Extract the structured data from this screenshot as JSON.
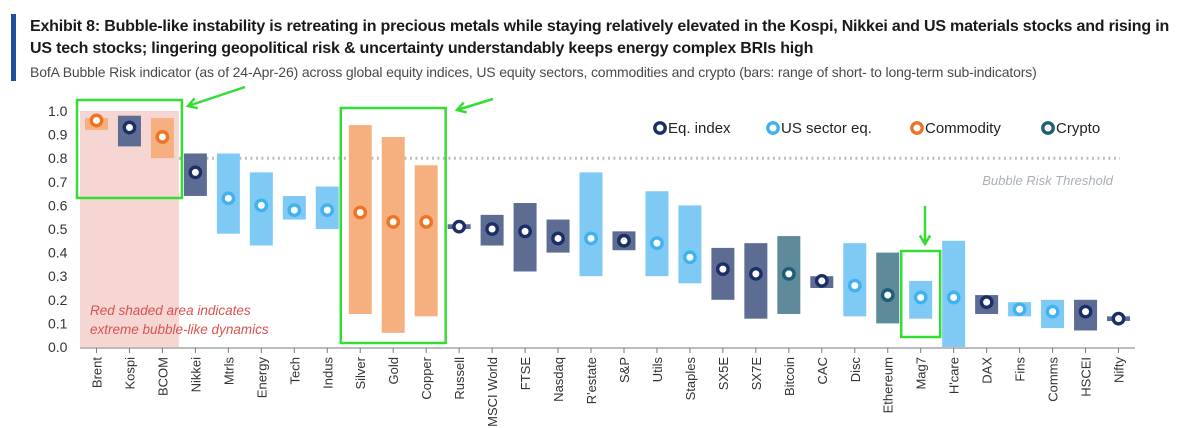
{
  "header": {
    "title": "Exhibit 8: Bubble-like instability is retreating in precious metals while staying relatively elevated in the Kospi, Nikkei and US materials stocks and rising in US tech stocks; lingering geopolitical risk & uncertainty understandably keeps energy complex BRIs high",
    "subtitle": "BofA Bubble Risk indicator (as of 24-Apr-26) across global equity indices, US equity sectors, commodities and crypto (bars: range of short- to long-term sub-indicators)"
  },
  "colors": {
    "accent": "#1f4e9c",
    "eq_index": "#1b2f66",
    "us_sector": "#41b2ee",
    "commodity": "#ec7424",
    "crypto": "#1d5e76",
    "eq_index_bar": "#5d6c93",
    "us_sector_bar": "#7fcaf5",
    "commodity_bar": "#f6b07f",
    "crypto_bar": "#5f8a99",
    "red_shade": "#f6d6d3",
    "highlight": "#33dd33",
    "threshold": "#bdbdbd"
  },
  "chart_data": {
    "type": "range-bar-with-markers",
    "title": "",
    "ylim": [
      0.0,
      1.0
    ],
    "yticks": [
      0.0,
      0.1,
      0.2,
      0.3,
      0.4,
      0.5,
      0.6,
      0.7,
      0.8,
      0.9,
      1.0
    ],
    "ytick_labels": [
      "0.0",
      "0.1",
      "0.2",
      "0.3",
      "0.4",
      "0.5",
      "0.6",
      "0.7",
      "0.8",
      "0.9",
      "1.0"
    ],
    "threshold": {
      "value": 0.8,
      "label": "Bubble Risk Threshold"
    },
    "red_zone": {
      "from_category": "Brent",
      "to_category": "BCOM",
      "label_lines": [
        "Red shaded area indicates",
        "extreme bubble-like dynamics"
      ]
    },
    "legend_position": "top-right",
    "legend": [
      {
        "key": "eq_index",
        "label": "Eq. index"
      },
      {
        "key": "us_sector",
        "label": "US sector eq."
      },
      {
        "key": "commodity",
        "label": "Commodity"
      },
      {
        "key": "crypto",
        "label": "Crypto"
      }
    ],
    "highlight_boxes": [
      {
        "from": "Brent",
        "to": "BCOM",
        "arrow": true
      },
      {
        "from": "Silver",
        "to": "Copper",
        "arrow": true
      },
      {
        "from": "Mag7",
        "to": "Mag7",
        "arrow": true
      }
    ],
    "items": [
      {
        "label": "Brent",
        "group": "commodity",
        "low": 0.92,
        "high": 0.97,
        "value": 0.96
      },
      {
        "label": "Kospi",
        "group": "eq_index",
        "low": 0.85,
        "high": 0.98,
        "value": 0.93
      },
      {
        "label": "BCOM",
        "group": "commodity",
        "low": 0.8,
        "high": 0.97,
        "value": 0.89
      },
      {
        "label": "Nikkei",
        "group": "eq_index",
        "low": 0.64,
        "high": 0.82,
        "value": 0.74
      },
      {
        "label": "Mtrls",
        "group": "us_sector",
        "low": 0.48,
        "high": 0.82,
        "value": 0.63
      },
      {
        "label": "Energy",
        "group": "us_sector",
        "low": 0.43,
        "high": 0.74,
        "value": 0.6
      },
      {
        "label": "Tech",
        "group": "us_sector",
        "low": 0.54,
        "high": 0.64,
        "value": 0.58
      },
      {
        "label": "Indus",
        "group": "us_sector",
        "low": 0.5,
        "high": 0.68,
        "value": 0.58
      },
      {
        "label": "Silver",
        "group": "commodity",
        "low": 0.14,
        "high": 0.94,
        "value": 0.57
      },
      {
        "label": "Gold",
        "group": "commodity",
        "low": 0.06,
        "high": 0.89,
        "value": 0.53
      },
      {
        "label": "Copper",
        "group": "commodity",
        "low": 0.13,
        "high": 0.77,
        "value": 0.53
      },
      {
        "label": "Russell",
        "group": "eq_index",
        "low": 0.5,
        "high": 0.52,
        "value": 0.51
      },
      {
        "label": "MSCI World",
        "group": "eq_index",
        "low": 0.43,
        "high": 0.56,
        "value": 0.5
      },
      {
        "label": "FTSE",
        "group": "eq_index",
        "low": 0.32,
        "high": 0.61,
        "value": 0.49
      },
      {
        "label": "Nasdaq",
        "group": "eq_index",
        "low": 0.4,
        "high": 0.54,
        "value": 0.46
      },
      {
        "label": "R'estate",
        "group": "us_sector",
        "low": 0.3,
        "high": 0.74,
        "value": 0.46
      },
      {
        "label": "S&P",
        "group": "eq_index",
        "low": 0.41,
        "high": 0.49,
        "value": 0.45
      },
      {
        "label": "Utils",
        "group": "us_sector",
        "low": 0.3,
        "high": 0.66,
        "value": 0.44
      },
      {
        "label": "Staples",
        "group": "us_sector",
        "low": 0.27,
        "high": 0.6,
        "value": 0.38
      },
      {
        "label": "SX5E",
        "group": "eq_index",
        "low": 0.2,
        "high": 0.42,
        "value": 0.33
      },
      {
        "label": "SX7E",
        "group": "eq_index",
        "low": 0.12,
        "high": 0.44,
        "value": 0.31
      },
      {
        "label": "Bitcoin",
        "group": "crypto",
        "low": 0.14,
        "high": 0.47,
        "value": 0.31
      },
      {
        "label": "CAC",
        "group": "eq_index",
        "low": 0.25,
        "high": 0.3,
        "value": 0.28
      },
      {
        "label": "Disc",
        "group": "us_sector",
        "low": 0.13,
        "high": 0.44,
        "value": 0.26
      },
      {
        "label": "Ethereum",
        "group": "crypto",
        "low": 0.1,
        "high": 0.4,
        "value": 0.22
      },
      {
        "label": "Mag7",
        "group": "us_sector",
        "low": 0.12,
        "high": 0.28,
        "value": 0.21
      },
      {
        "label": "H'care",
        "group": "us_sector",
        "low": 0.0,
        "high": 0.45,
        "value": 0.21
      },
      {
        "label": "DAX",
        "group": "eq_index",
        "low": 0.14,
        "high": 0.22,
        "value": 0.19
      },
      {
        "label": "Fins",
        "group": "us_sector",
        "low": 0.13,
        "high": 0.19,
        "value": 0.16
      },
      {
        "label": "Comms",
        "group": "us_sector",
        "low": 0.08,
        "high": 0.2,
        "value": 0.15
      },
      {
        "label": "HSCEI",
        "group": "eq_index",
        "low": 0.07,
        "high": 0.2,
        "value": 0.15
      },
      {
        "label": "Nifty",
        "group": "eq_index",
        "low": 0.11,
        "high": 0.13,
        "value": 0.12
      }
    ]
  }
}
